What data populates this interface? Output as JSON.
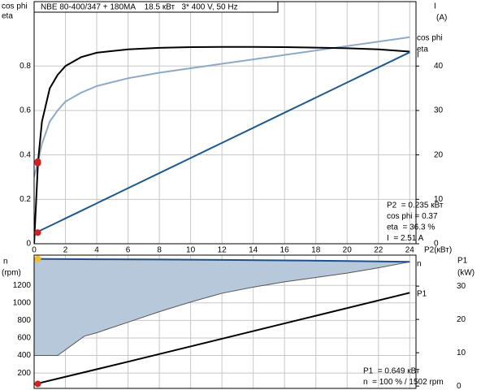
{
  "chart_data": [
    {
      "type": "line",
      "title": "NBE 80-400/347 + 180MA    18.5 кВт   3* 400 V, 50 Hz",
      "ylabel": [
        "cos phi",
        "eta"
      ],
      "y2label": [
        "I",
        "(A)"
      ],
      "xlabel": "P2(кВт)",
      "x": [
        0,
        0.25,
        0.5,
        1,
        1.5,
        2,
        3,
        4,
        6,
        8,
        10,
        12,
        14,
        16,
        18,
        20,
        22,
        24
      ],
      "xlim": [
        0,
        24.4
      ],
      "xticks": [
        0,
        2,
        4,
        6,
        8,
        10,
        12,
        14,
        16,
        18,
        20,
        22,
        24
      ],
      "ylim": [
        0,
        1.09
      ],
      "yticks": [
        0,
        0.2,
        0.4,
        0.6,
        0.8
      ],
      "y2lim": [
        0,
        54.5
      ],
      "y2ticks": [
        0,
        10,
        20,
        30,
        40
      ],
      "grid": true,
      "series": [
        {
          "name": "cos phi",
          "color": "#8ea9c6",
          "values": [
            0.3,
            0.37,
            0.45,
            0.55,
            0.6,
            0.64,
            0.68,
            0.71,
            0.745,
            0.77,
            0.79,
            0.81,
            0.83,
            0.85,
            0.87,
            0.89,
            0.91,
            0.93
          ]
        },
        {
          "name": "eta",
          "color": "#000000",
          "values": [
            0,
            0.37,
            0.55,
            0.7,
            0.76,
            0.8,
            0.84,
            0.86,
            0.875,
            0.882,
            0.885,
            0.886,
            0.886,
            0.885,
            0.883,
            0.88,
            0.875,
            0.865
          ]
        },
        {
          "name": "I",
          "color": "#1f5a8a",
          "axis": "y2",
          "values": [
            2.3,
            2.7,
            3.15,
            4.0,
            4.85,
            5.7,
            7.4,
            9.1,
            12.5,
            15.9,
            19.3,
            22.7,
            26.1,
            29.5,
            32.9,
            36.3,
            39.7,
            43.1
          ]
        }
      ],
      "markers": [
        {
          "x": 0.235,
          "value": 0.363,
          "color": "#d42020"
        },
        {
          "x": 0.235,
          "value": 0.37,
          "color": "#d42020"
        },
        {
          "x": 0.235,
          "value": 2.51,
          "axis": "y2",
          "color": "#d42020"
        }
      ],
      "info": [
        "P2  = 0.235 кВт",
        "cos phi = 0.37",
        "eta  = 36.3 %",
        "I  = 2.51 A"
      ]
    },
    {
      "type": "line",
      "ylabel": [
        "n",
        "(rpm)"
      ],
      "y2label": [
        "P1",
        "(kW)"
      ],
      "xlim": [
        0,
        24.4
      ],
      "xticks": [
        0,
        2,
        4,
        6,
        8,
        10,
        12,
        14,
        16,
        18,
        20,
        22,
        24
      ],
      "ylim": [
        25,
        1545
      ],
      "yticks": [
        200,
        400,
        600,
        800,
        1000,
        1200
      ],
      "y2lim": [
        -0.7,
        39.3
      ],
      "y2ticks": [
        0,
        10,
        20,
        30
      ],
      "grid": true,
      "band": {
        "color": "#b6c8da",
        "x": [
          0,
          1.5,
          3.2,
          4,
          6,
          8,
          10,
          12,
          14,
          16,
          18,
          20,
          22,
          24
        ],
        "lower": [
          400,
          400,
          620,
          660,
          780,
          900,
          1010,
          1110,
          1180,
          1240,
          1290,
          1340,
          1400,
          1468
        ]
      },
      "series": [
        {
          "name": "n",
          "color": "#1f4f8a",
          "x": [
            0,
            4,
            8,
            12,
            16,
            20,
            24
          ],
          "values": [
            1502,
            1498,
            1495,
            1490,
            1485,
            1478,
            1468
          ]
        },
        {
          "name": "P1",
          "color": "#000000",
          "axis": "y2",
          "x": [
            0,
            6,
            12,
            18,
            24
          ],
          "values": [
            0.5,
            7.3,
            14.2,
            21.1,
            28
          ]
        }
      ],
      "markers": [
        {
          "x": 0.235,
          "value": 1502,
          "color": "#f2c01e"
        },
        {
          "x": 0.235,
          "value": 0.649,
          "axis": "y2",
          "color": "#d42020"
        }
      ],
      "info": [
        "P1  = 0.649 кВт",
        "n  = 100 % / 1502 rpm"
      ]
    }
  ]
}
